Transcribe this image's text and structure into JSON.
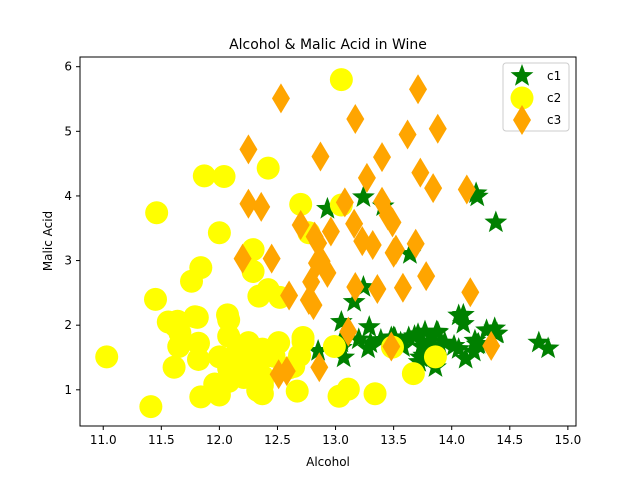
{
  "chart_data": {
    "type": "scatter",
    "title": "Alcohol & Malic Acid in Wine",
    "xlabel": "Alcohol",
    "ylabel": "Malic Acid",
    "xlim": [
      10.8,
      15.07
    ],
    "ylim": [
      0.44,
      6.15
    ],
    "xticks": [
      "11.0",
      "11.5",
      "12.0",
      "12.5",
      "13.0",
      "13.5",
      "14.0",
      "14.5",
      "15.0"
    ],
    "yticks": [
      "1",
      "2",
      "3",
      "4",
      "5",
      "6"
    ],
    "grid": false,
    "legend_position": "top-right",
    "series": [
      {
        "name": "c1",
        "marker": "star",
        "color": "#008000",
        "x": [
          14.23,
          13.2,
          13.16,
          14.37,
          13.24,
          14.2,
          14.39,
          14.06,
          14.83,
          13.86,
          14.1,
          14.12,
          13.75,
          14.75,
          14.38,
          13.63,
          14.3,
          13.83,
          14.19,
          13.64,
          14.06,
          12.93,
          13.71,
          12.85,
          13.5,
          13.05,
          13.39,
          13.3,
          13.87,
          14.02,
          13.73,
          13.58,
          13.68,
          13.76,
          13.51,
          13.48,
          13.28,
          13.05,
          13.07,
          14.22,
          13.56,
          13.41,
          13.88,
          13.24,
          13.05,
          14.21,
          14.38,
          13.9,
          14.1,
          13.94,
          13.05,
          13.83,
          13.82,
          13.77,
          13.74,
          13.56,
          14.22,
          13.29,
          13.72
        ],
        "y": [
          1.71,
          1.78,
          2.36,
          1.95,
          2.59,
          1.76,
          1.87,
          2.15,
          1.64,
          1.35,
          2.16,
          1.48,
          1.73,
          1.73,
          1.87,
          1.81,
          1.92,
          1.57,
          1.59,
          3.1,
          1.63,
          3.8,
          1.86,
          1.6,
          1.81,
          2.05,
          1.77,
          1.72,
          1.9,
          1.68,
          1.5,
          1.66,
          1.83,
          1.53,
          1.8,
          1.81,
          1.64,
          1.65,
          1.5,
          3.99,
          1.71,
          3.84,
          1.89,
          3.98,
          1.77,
          4.04,
          3.59,
          1.68,
          2.02,
          1.73,
          1.73,
          1.65,
          1.75,
          1.9,
          1.67,
          1.73,
          1.7,
          1.97,
          1.43
        ]
      },
      {
        "name": "c2",
        "marker": "circle",
        "color": "#ffff00",
        "x": [
          12.37,
          12.33,
          12.64,
          13.67,
          12.37,
          12.17,
          12.37,
          13.11,
          12.37,
          13.34,
          12.21,
          12.29,
          13.86,
          13.49,
          12.99,
          11.96,
          11.66,
          13.03,
          11.84,
          12.33,
          12.7,
          12.0,
          12.72,
          12.08,
          13.05,
          11.84,
          12.67,
          12.16,
          11.65,
          11.64,
          12.08,
          12.08,
          12.0,
          12.69,
          12.29,
          11.62,
          12.47,
          11.81,
          12.29,
          12.37,
          12.29,
          12.08,
          12.6,
          12.34,
          11.82,
          12.51,
          12.42,
          12.25,
          12.72,
          12.22,
          11.61,
          11.46,
          12.52,
          11.76,
          11.41,
          12.08,
          11.03,
          11.82,
          12.42,
          12.77,
          12.0,
          11.45,
          11.56,
          12.42,
          13.05,
          11.87,
          12.07,
          12.43,
          11.79,
          12.37,
          12.04
        ],
        "y": [
          0.94,
          1.1,
          1.36,
          1.25,
          1.13,
          1.45,
          1.21,
          1.01,
          1.17,
          0.94,
          1.19,
          1.61,
          1.51,
          1.66,
          1.67,
          1.09,
          1.88,
          0.9,
          2.89,
          0.99,
          3.87,
          0.92,
          1.81,
          1.13,
          3.86,
          0.89,
          0.98,
          1.61,
          1.67,
          2.06,
          1.33,
          1.83,
          1.51,
          1.53,
          2.83,
          1.99,
          1.52,
          2.12,
          1.41,
          1.07,
          3.17,
          2.08,
          1.34,
          2.45,
          1.72,
          1.73,
          2.55,
          1.73,
          1.75,
          1.29,
          1.35,
          3.74,
          2.43,
          2.68,
          0.74,
          1.39,
          1.51,
          1.47,
          1.61,
          3.43,
          3.43,
          2.4,
          2.05,
          4.43,
          5.8,
          4.31,
          2.16,
          1.53,
          2.13,
          1.63,
          4.3
        ]
      },
      {
        "name": "c3",
        "marker": "diamond",
        "color": "#ffa500",
        "x": [
          12.86,
          12.88,
          12.81,
          12.7,
          12.51,
          12.6,
          12.25,
          12.53,
          13.49,
          12.84,
          12.93,
          13.36,
          13.52,
          13.62,
          12.25,
          13.16,
          13.88,
          12.87,
          13.32,
          13.08,
          13.5,
          12.79,
          13.11,
          13.23,
          12.58,
          13.17,
          13.84,
          12.45,
          14.34,
          13.48,
          12.36,
          13.69,
          12.85,
          12.96,
          13.78,
          13.73,
          13.45,
          12.82,
          13.58,
          13.4,
          12.2,
          12.77,
          14.16,
          13.71,
          13.4,
          13.27,
          13.17,
          14.13
        ],
        "y": [
          1.35,
          2.99,
          2.31,
          3.55,
          1.24,
          2.46,
          4.72,
          5.51,
          3.59,
          2.96,
          2.81,
          2.56,
          3.17,
          4.95,
          3.88,
          3.57,
          5.04,
          4.61,
          3.24,
          3.9,
          3.12,
          2.67,
          1.9,
          3.3,
          1.29,
          5.19,
          4.12,
          3.03,
          1.68,
          1.67,
          3.83,
          3.26,
          3.27,
          3.45,
          2.76,
          4.36,
          3.7,
          3.37,
          2.58,
          4.6,
          3.03,
          2.39,
          2.51,
          5.65,
          3.91,
          4.28,
          2.59,
          4.1
        ]
      }
    ]
  }
}
